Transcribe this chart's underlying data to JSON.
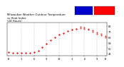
{
  "title": "Milwaukee Weather Outdoor Temperature\nvs Heat Index\n(24 Hours)",
  "title_fontsize": 2.8,
  "bg_color": "#ffffff",
  "plot_bg": "#ffffff",
  "dot_color": "#ff0000",
  "dot_color2": "#cc0000",
  "dot_size": 0.8,
  "legend_blue": "#0000cc",
  "legend_red": "#ff0000",
  "ylim": [
    38,
    92
  ],
  "yticks": [
    41,
    50,
    59,
    68,
    77,
    86
  ],
  "ytick_labels": [
    "41",
    "50",
    "59",
    "68",
    "77",
    "86"
  ],
  "grid_color": "#bbbbbb",
  "grid_style": "--",
  "time_points": [
    0,
    1,
    2,
    3,
    4,
    5,
    6,
    7,
    8,
    9,
    10,
    11,
    12,
    13,
    14,
    15,
    16,
    17,
    18,
    19,
    20,
    21,
    22,
    23
  ],
  "temp_values": [
    44,
    43,
    42,
    42,
    42,
    43,
    44,
    46,
    52,
    57,
    63,
    68,
    72,
    75,
    78,
    80,
    82,
    83,
    82,
    80,
    77,
    74,
    71,
    68
  ],
  "hi_values": [
    44,
    43,
    42,
    42,
    42,
    43,
    44,
    46,
    52,
    57,
    63,
    68,
    72,
    75,
    78,
    80,
    82,
    85,
    84,
    82,
    79,
    76,
    73,
    70
  ],
  "xtick_positions": [
    0,
    3,
    6,
    9,
    12,
    15,
    18,
    21,
    23
  ],
  "xtick_labels": [
    "12",
    "3",
    "6",
    "9",
    "12",
    "3",
    "6",
    "9",
    "12"
  ],
  "vgrid_positions": [
    3,
    6,
    9,
    12,
    15,
    18,
    21
  ],
  "xlim": [
    -0.3,
    23.3
  ]
}
